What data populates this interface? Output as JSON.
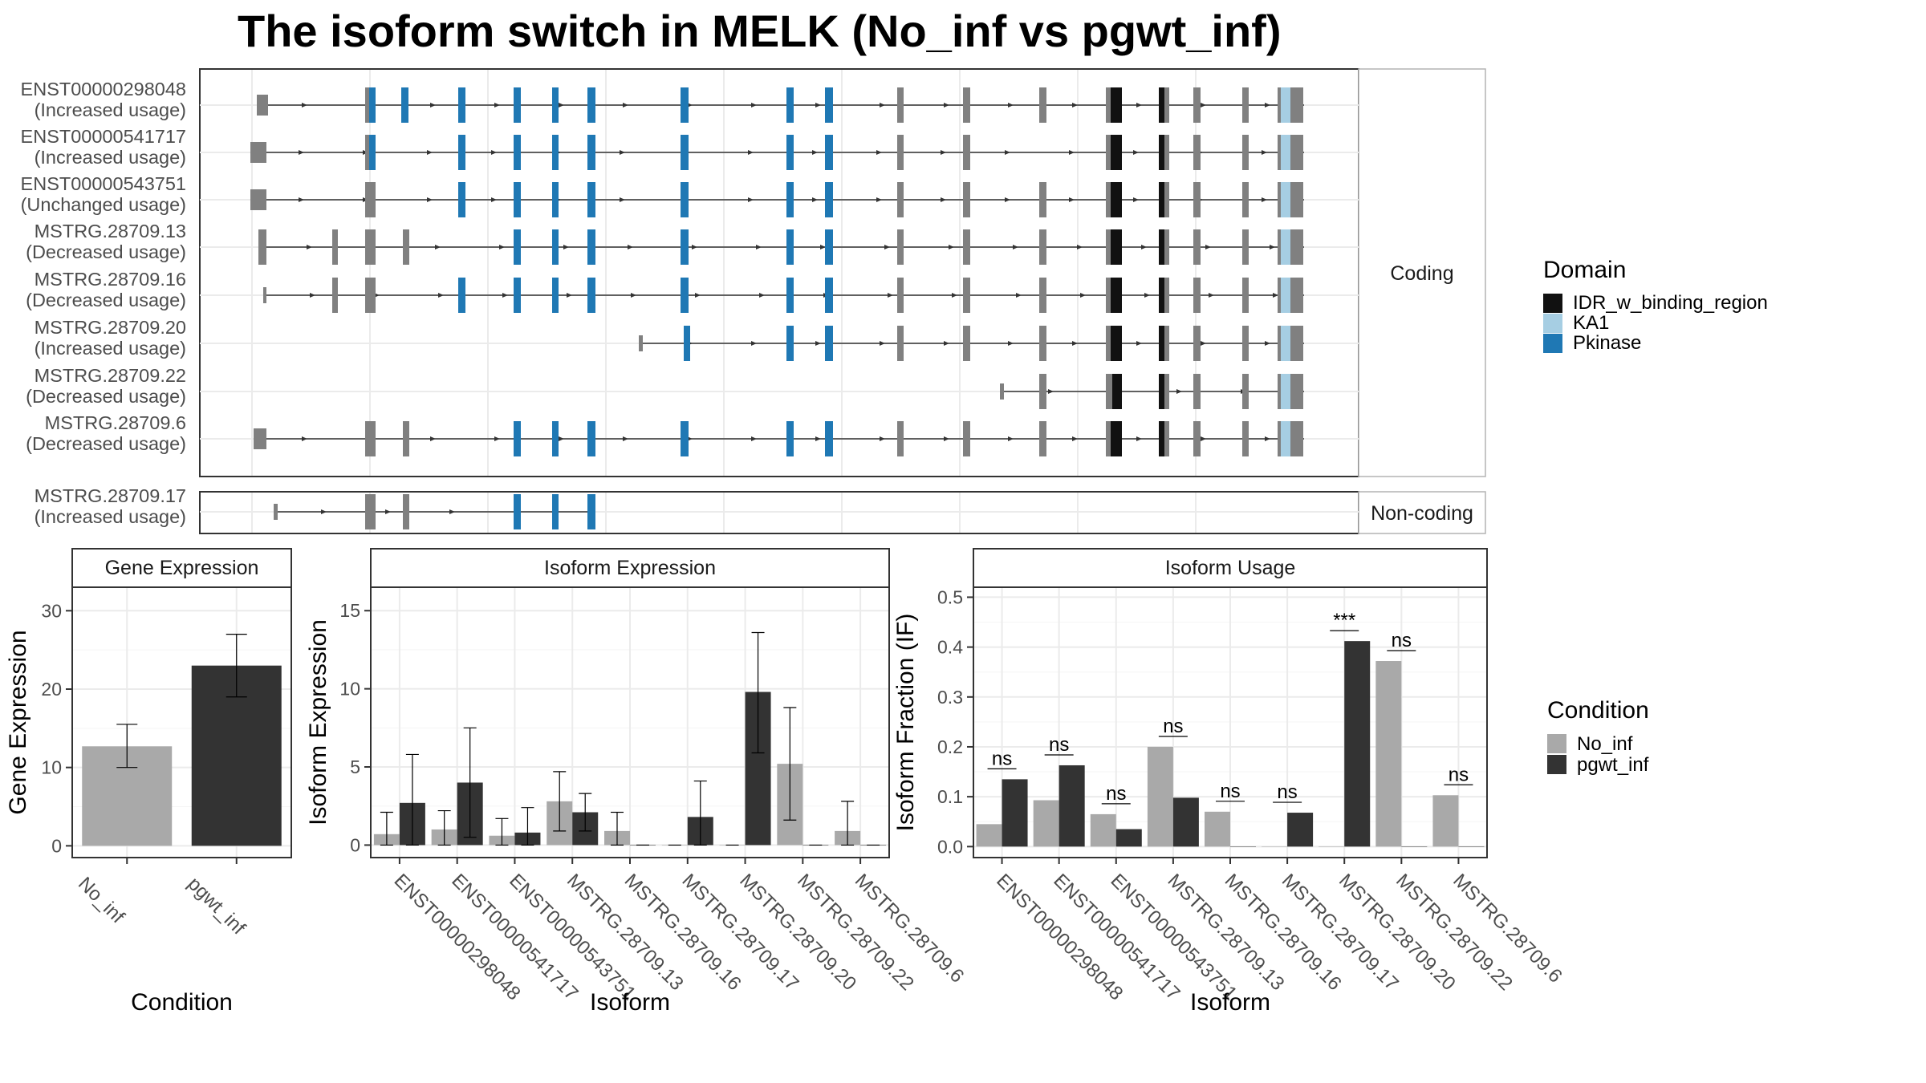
{
  "title": "The isoform switch in MELK (No_inf vs pgwt_inf)",
  "colors": {
    "IDR_w_binding_region": "#111111",
    "KA1": "#a6cee3",
    "Pkinase": "#1f78b4",
    "exon": "#808080",
    "No_inf": "#a9a9a9",
    "pgwt_inf": "#333333",
    "grid": "#ebebeb"
  },
  "structure": {
    "facets": [
      "Coding",
      "Non-coding"
    ],
    "transcripts": [
      {
        "id": "ENST00000298048",
        "status": "(Increased usage)",
        "facet": "Coding"
      },
      {
        "id": "ENST00000541717",
        "status": "(Increased usage)",
        "facet": "Coding"
      },
      {
        "id": "ENST00000543751",
        "status": "(Unchanged usage)",
        "facet": "Coding"
      },
      {
        "id": "MSTRG.28709.13",
        "status": "(Decreased usage)",
        "facet": "Coding"
      },
      {
        "id": "MSTRG.28709.16",
        "status": "(Decreased usage)",
        "facet": "Coding"
      },
      {
        "id": "MSTRG.28709.20",
        "status": "(Increased usage)",
        "facet": "Coding"
      },
      {
        "id": "MSTRG.28709.22",
        "status": "(Decreased usage)",
        "facet": "Coding"
      },
      {
        "id": "MSTRG.28709.6",
        "status": "(Decreased usage)",
        "facet": "Coding"
      },
      {
        "id": "MSTRG.28709.17",
        "status": "(Increased usage)",
        "facet": "Non-coding"
      }
    ],
    "legend_title": "Domain",
    "legend": [
      "IDR_w_binding_region",
      "KA1",
      "Pkinase"
    ]
  },
  "chart_data": [
    {
      "type": "bar",
      "title": "Gene Expression",
      "xlabel": "Condition",
      "ylabel": "Gene Expression",
      "categories": [
        "No_inf",
        "pgwt_inf"
      ],
      "values": [
        12.7,
        23.0
      ],
      "errors": [
        [
          10.0,
          15.5
        ],
        [
          19.0,
          27.0
        ]
      ],
      "ylim": [
        -1.5,
        33
      ],
      "yticks": [
        0,
        10,
        20,
        30
      ]
    },
    {
      "type": "bar",
      "title": "Isoform Expression",
      "xlabel": "Isoform",
      "ylabel": "Isoform Expression",
      "categories": [
        "ENST00000298048",
        "ENST00000541717",
        "ENST00000543751",
        "MSTRG.28709.13",
        "MSTRG.28709.16",
        "MSTRG.28709.17",
        "MSTRG.28709.20",
        "MSTRG.28709.22",
        "MSTRG.28709.6"
      ],
      "series": [
        {
          "name": "No_inf",
          "values": [
            0.7,
            1.0,
            0.6,
            2.8,
            0.9,
            0.0,
            0.0,
            5.2,
            0.9
          ],
          "errors": [
            [
              0.0,
              2.1
            ],
            [
              0.0,
              2.2
            ],
            [
              0.0,
              1.7
            ],
            [
              0.9,
              4.7
            ],
            [
              0.0,
              2.1
            ],
            [
              0,
              0
            ],
            [
              0,
              0
            ],
            [
              1.6,
              8.8
            ],
            [
              0.0,
              2.8
            ]
          ]
        },
        {
          "name": "pgwt_inf",
          "values": [
            2.7,
            4.0,
            0.8,
            2.1,
            0.0,
            1.8,
            9.8,
            0.0,
            0.0
          ],
          "errors": [
            [
              0.0,
              5.8
            ],
            [
              0.5,
              7.5
            ],
            [
              0.0,
              2.4
            ],
            [
              0.9,
              3.3
            ],
            [
              0,
              0
            ],
            [
              0.0,
              4.1
            ],
            [
              5.9,
              13.6
            ],
            [
              0,
              0
            ],
            [
              0,
              0
            ]
          ]
        }
      ],
      "ylim": [
        -0.8,
        16.5
      ],
      "yticks": [
        0,
        5,
        10,
        15
      ]
    },
    {
      "type": "bar",
      "title": "Isoform Usage",
      "xlabel": "Isoform",
      "ylabel": "Isoform Fraction (IF)",
      "categories": [
        "ENST00000298048",
        "ENST00000541717",
        "ENST00000543751",
        "MSTRG.28709.13",
        "MSTRG.28709.16",
        "MSTRG.28709.17",
        "MSTRG.28709.20",
        "MSTRG.28709.22",
        "MSTRG.28709.6"
      ],
      "series": [
        {
          "name": "No_inf",
          "values": [
            0.045,
            0.093,
            0.065,
            0.2,
            0.07,
            0.0,
            0.0,
            0.372,
            0.103
          ]
        },
        {
          "name": "pgwt_inf",
          "values": [
            0.135,
            0.163,
            0.035,
            0.098,
            0.0,
            0.068,
            0.412,
            0.0,
            0.0
          ]
        }
      ],
      "significance": [
        "ns",
        "ns",
        "ns",
        "ns",
        "ns",
        "ns",
        "***",
        "ns",
        "ns"
      ],
      "ylim": [
        -0.022,
        0.52
      ],
      "yticks": [
        0.0,
        0.1,
        0.2,
        0.3,
        0.4,
        0.5
      ],
      "ytick_labels": [
        "0.0",
        "0.1",
        "0.2",
        "0.3",
        "0.4",
        "0.5"
      ],
      "legend_title": "Condition",
      "legend": [
        "No_inf",
        "pgwt_inf"
      ]
    }
  ]
}
